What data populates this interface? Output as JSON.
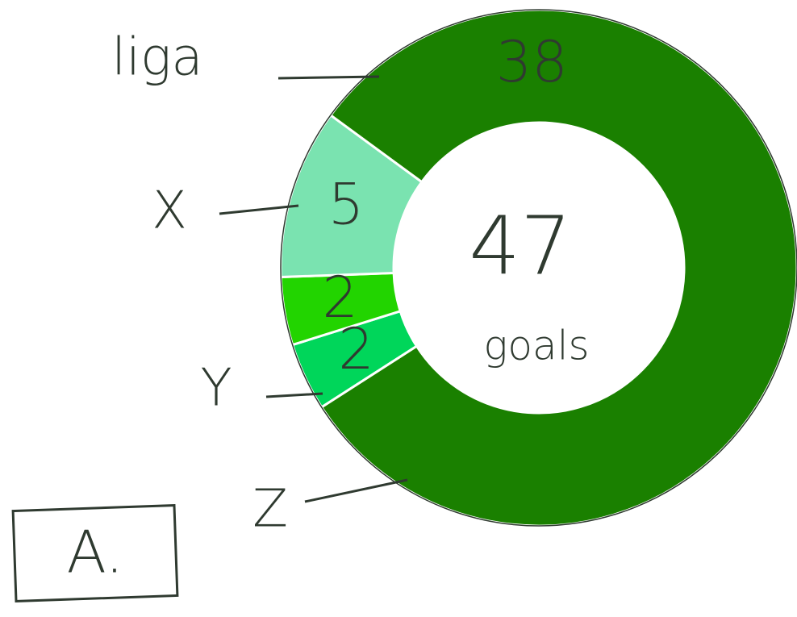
{
  "chart_data": {
    "type": "donut",
    "categories": [
      "liga",
      "X",
      "Y",
      "Z"
    ],
    "values": [
      38,
      5,
      2,
      2
    ],
    "colors": [
      "#1a8000",
      "#7ae3b0",
      "#22d400",
      "#00d65a"
    ],
    "center_value": 47,
    "center_label": "goals",
    "panel_label": "A."
  }
}
